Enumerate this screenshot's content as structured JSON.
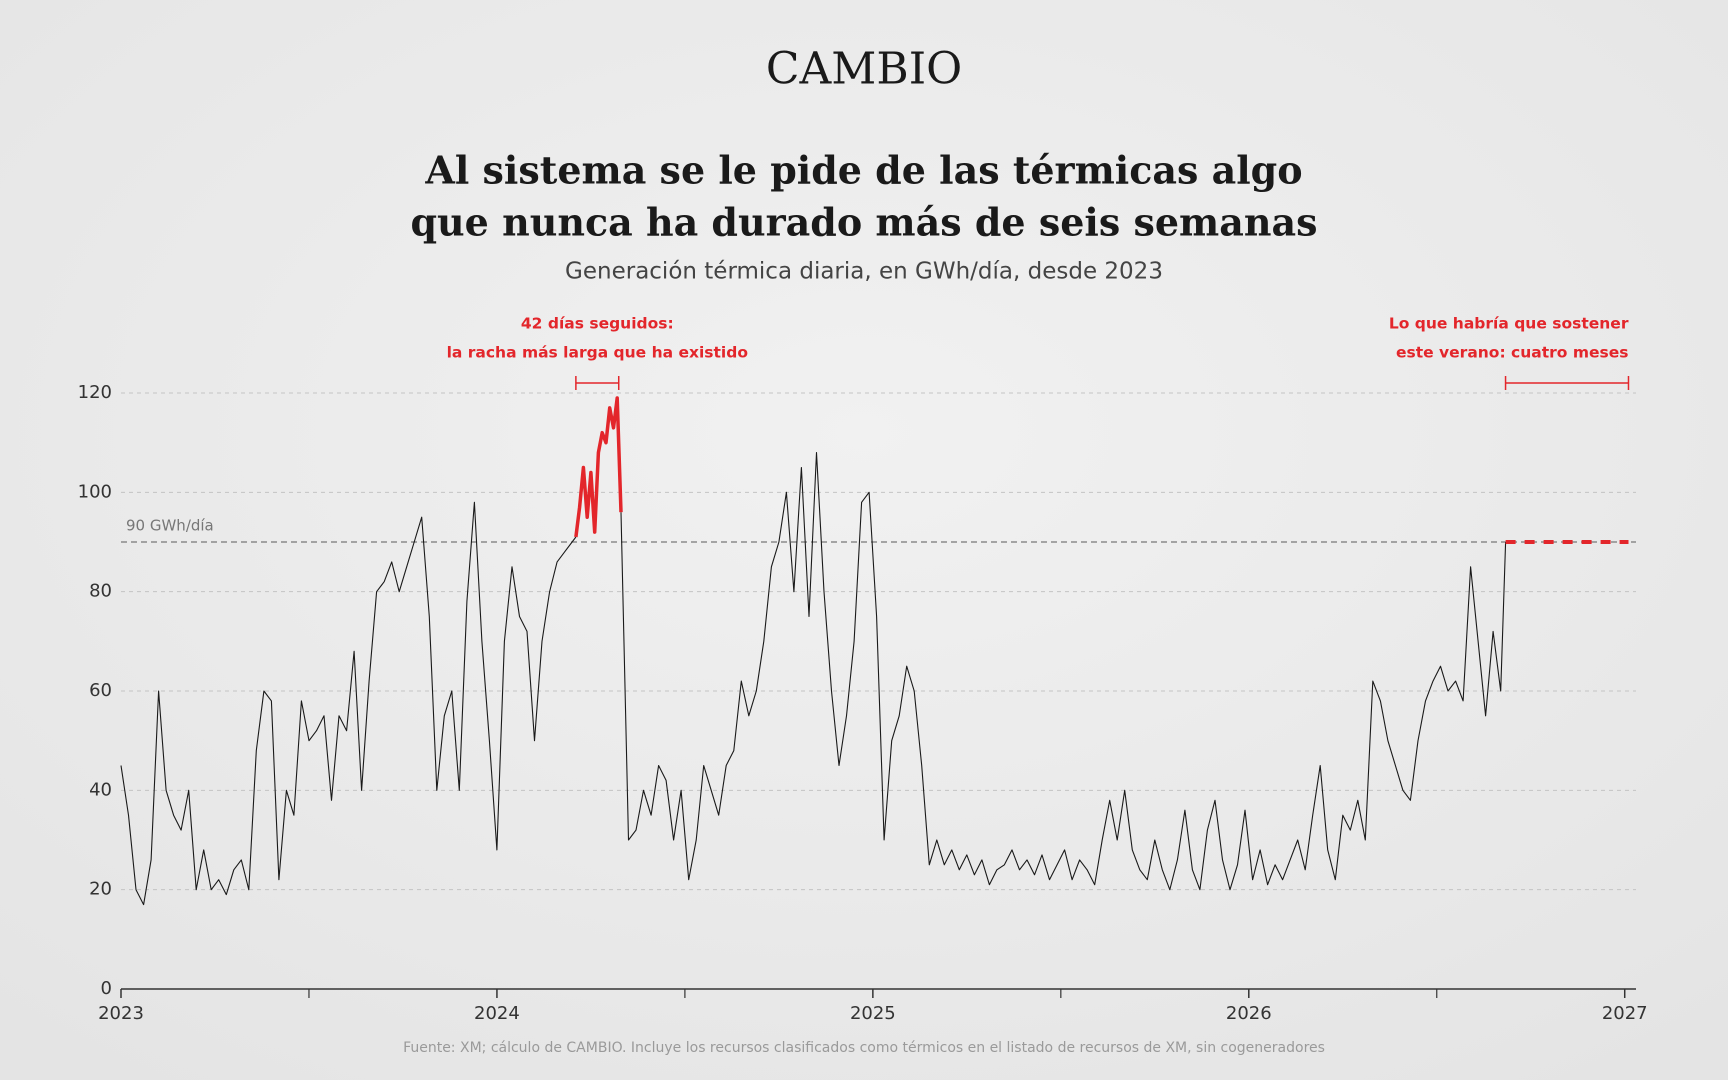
{
  "brand": "CAMBIO",
  "chart_data": {
    "type": "line",
    "title": [
      "Al sistema se le pide de las térmicas algo",
      "que nunca ha durado más de seis semanas"
    ],
    "subtitle": "Generación térmica diaria, en GWh/día, desde 2023",
    "source": "Fuente: XM; cálculo de CAMBIO. Incluye los recursos clasificados como térmicos en el listado de recursos de XM, sin cogeneradores",
    "xlim": [
      2023,
      2027.03
    ],
    "xticks": [
      2023,
      2024,
      2025,
      2026,
      2027
    ],
    "xminor_ticks": [
      2023.5,
      2024.5,
      2025.5,
      2026.5
    ],
    "ylim": [
      0,
      120
    ],
    "yticks": [
      0,
      20,
      40,
      60,
      80,
      100,
      120
    ],
    "grid": true,
    "reference_line": {
      "value": 90,
      "label": "90 GWh/día",
      "color": "#777777"
    },
    "series": [
      {
        "color": "#1a1a1a",
        "style": "solid",
        "x": [
          2023.0,
          2023.02,
          2023.04,
          2023.06,
          2023.08,
          2023.1,
          2023.12,
          2023.14,
          2023.16,
          2023.18,
          2023.2,
          2023.22,
          2023.24,
          2023.26,
          2023.28,
          2023.3,
          2023.32,
          2023.34,
          2023.36,
          2023.38,
          2023.4,
          2023.42,
          2023.44,
          2023.46,
          2023.48,
          2023.5,
          2023.52,
          2023.54,
          2023.56,
          2023.58,
          2023.6,
          2023.62,
          2023.64,
          2023.66,
          2023.68,
          2023.7,
          2023.72,
          2023.74,
          2023.76,
          2023.78,
          2023.8,
          2023.82,
          2023.84,
          2023.86,
          2023.88,
          2023.9,
          2023.92,
          2023.94,
          2023.96,
          2023.98,
          2024.0,
          2024.02,
          2024.04,
          2024.06,
          2024.08,
          2024.1,
          2024.12,
          2024.14,
          2024.16,
          2024.18,
          2024.2,
          2024.21,
          2024.27,
          2024.33,
          2024.35,
          2024.37,
          2024.39,
          2024.41,
          2024.43,
          2024.45,
          2024.47,
          2024.49,
          2024.51,
          2024.53,
          2024.55,
          2024.57,
          2024.59,
          2024.61,
          2024.63,
          2024.65,
          2024.67,
          2024.69,
          2024.71,
          2024.73,
          2024.75,
          2024.77,
          2024.79,
          2024.81,
          2024.83,
          2024.85,
          2024.87,
          2024.89,
          2024.91,
          2024.93,
          2024.95,
          2024.97,
          2024.99,
          2025.01,
          2025.03,
          2025.05,
          2025.07,
          2025.09,
          2025.11,
          2025.13,
          2025.15,
          2025.17,
          2025.19,
          2025.21,
          2025.23,
          2025.25,
          2025.27,
          2025.29,
          2025.31,
          2025.33,
          2025.35,
          2025.37,
          2025.39,
          2025.41,
          2025.43,
          2025.45,
          2025.47,
          2025.49,
          2025.51,
          2025.53,
          2025.55,
          2025.57,
          2025.59,
          2025.61,
          2025.63,
          2025.65,
          2025.67,
          2025.69,
          2025.71,
          2025.73,
          2025.75,
          2025.77,
          2025.79,
          2025.81,
          2025.83,
          2025.85,
          2025.87,
          2025.89,
          2025.91,
          2025.93,
          2025.95,
          2025.97,
          2025.99,
          2026.01,
          2026.03,
          2026.05,
          2026.07,
          2026.09,
          2026.11,
          2026.13,
          2026.15,
          2026.17,
          2026.19,
          2026.21,
          2026.23,
          2026.25,
          2026.27,
          2026.29,
          2026.31,
          2026.33,
          2026.35,
          2026.37,
          2026.39,
          2026.41,
          2026.43,
          2026.45,
          2026.47,
          2026.49,
          2026.51,
          2026.53,
          2026.55,
          2026.57,
          2026.59,
          2026.61,
          2026.63,
          2026.65,
          2026.67,
          2026.683
        ],
        "values": [
          45,
          35,
          20,
          17,
          26,
          60,
          40,
          35,
          32,
          40,
          20,
          28,
          20,
          22,
          19,
          24,
          26,
          20,
          48,
          60,
          58,
          22,
          40,
          35,
          58,
          50,
          52,
          55,
          38,
          55,
          52,
          68,
          40,
          62,
          80,
          82,
          86,
          80,
          85,
          90,
          95,
          75,
          40,
          55,
          60,
          40,
          78,
          98,
          70,
          50,
          28,
          70,
          85,
          75,
          72,
          50,
          70,
          80,
          86,
          88,
          90,
          91,
          null,
          96,
          30,
          32,
          40,
          35,
          45,
          42,
          30,
          40,
          22,
          30,
          45,
          40,
          35,
          45,
          48,
          62,
          55,
          60,
          70,
          85,
          90,
          100,
          80,
          105,
          75,
          108,
          80,
          60,
          45,
          55,
          70,
          98,
          100,
          75,
          30,
          50,
          55,
          65,
          60,
          45,
          25,
          30,
          25,
          28,
          24,
          27,
          23,
          26,
          21,
          24,
          25,
          28,
          24,
          26,
          23,
          27,
          22,
          25,
          28,
          22,
          26,
          24,
          21,
          30,
          38,
          30,
          40,
          28,
          24,
          22,
          30,
          24,
          20,
          26,
          36,
          24,
          20,
          32,
          38,
          26,
          20,
          25,
          36,
          22,
          28,
          21,
          25,
          22,
          26,
          30,
          24,
          35,
          45,
          28,
          22,
          35,
          32,
          38,
          30,
          62,
          58,
          50,
          45,
          40,
          38,
          50,
          58,
          62,
          65,
          60,
          62,
          58,
          85,
          70,
          55,
          72,
          60,
          90
        ]
      },
      {
        "color": "#e3262b",
        "style": "bold",
        "x": [
          2024.21,
          2024.22,
          2024.23,
          2024.24,
          2024.25,
          2024.26,
          2024.27,
          2024.28,
          2024.29,
          2024.3,
          2024.31,
          2024.32,
          2024.33
        ],
        "values": [
          91,
          97,
          105,
          95,
          104,
          92,
          108,
          112,
          110,
          117,
          113,
          119,
          96
        ]
      },
      {
        "color": "#e3262b",
        "style": "dashed",
        "x": [
          2026.683,
          2027.01
        ],
        "values": [
          90,
          90
        ]
      }
    ],
    "annotations": [
      {
        "text": [
          "42 días seguidos:",
          "la racha más larga que ha existido"
        ],
        "x_range": [
          2024.21,
          2024.324
        ],
        "color": "#e3262b",
        "align": "center"
      },
      {
        "text": [
          "Lo que habría que sostener",
          "este verano: cuatro meses"
        ],
        "x_range": [
          2026.683,
          2027.01
        ],
        "color": "#e3262b",
        "align": "right"
      }
    ]
  }
}
